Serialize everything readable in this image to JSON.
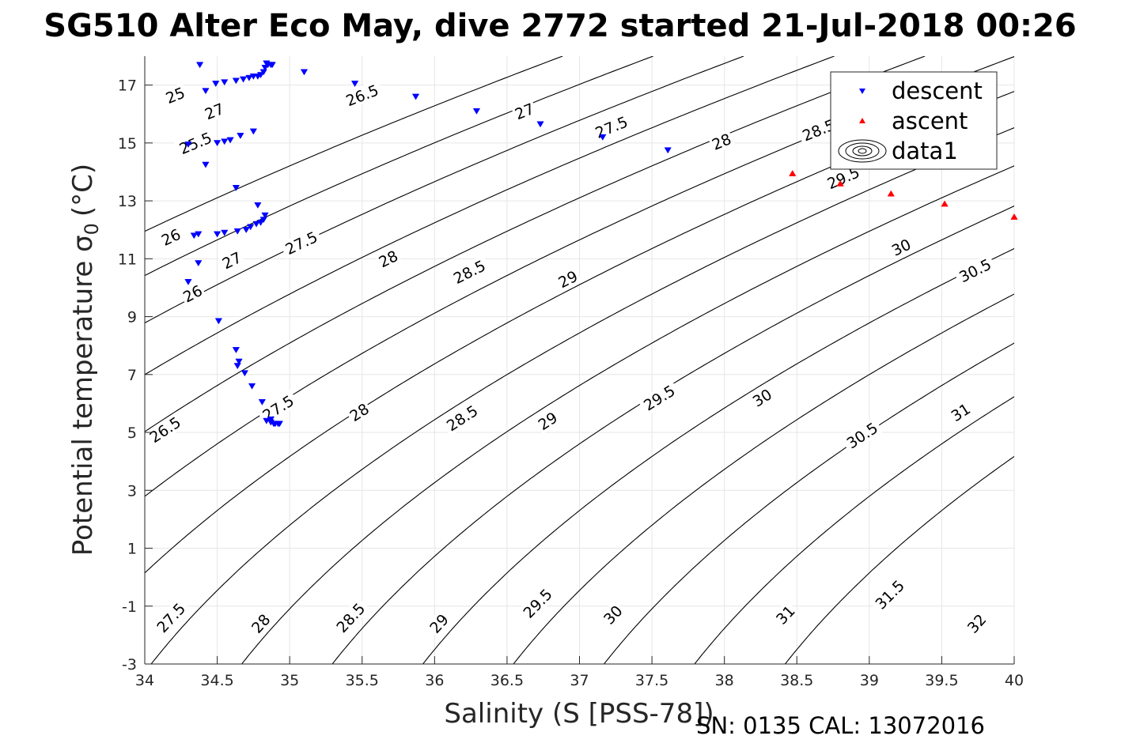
{
  "chart_data": {
    "type": "scatter",
    "title": "SG510 Alter Eco May, dive 2772 started 21-Jul-2018 00:26",
    "xlabel": "Salinity (S [PSS-78])",
    "ylabel": "Potential temperature σ",
    "ylabel_subscript": "0",
    "ylabel_unit": "(°C)",
    "xlim": [
      34,
      40
    ],
    "ylim": [
      -3,
      18
    ],
    "xticks": [
      34,
      34.5,
      35,
      35.5,
      36,
      36.5,
      37,
      37.5,
      38,
      38.5,
      39,
      39.5,
      40
    ],
    "xtick_labels": [
      "34",
      "34.5",
      "35",
      "35.5",
      "36",
      "36.5",
      "37",
      "37.5",
      "38",
      "38.5",
      "39",
      "39.5",
      "40"
    ],
    "yticks": [
      -3,
      -1,
      1,
      3,
      5,
      7,
      9,
      11,
      13,
      15,
      17
    ],
    "ytick_labels": [
      "-3",
      "-1",
      "1",
      "3",
      "5",
      "7",
      "9",
      "11",
      "13",
      "15",
      "17"
    ],
    "grid": true,
    "legend_placement": "top-right",
    "series": [
      {
        "name": "descent",
        "marker": "triangle-down",
        "color": "#0000ff",
        "points": [
          [
            34.38,
            17.7
          ],
          [
            34.42,
            16.8
          ],
          [
            34.49,
            17.05
          ],
          [
            34.55,
            17.1
          ],
          [
            34.63,
            17.15
          ],
          [
            34.68,
            17.2
          ],
          [
            34.72,
            17.25
          ],
          [
            34.75,
            17.3
          ],
          [
            34.78,
            17.3
          ],
          [
            34.8,
            17.35
          ],
          [
            34.82,
            17.45
          ],
          [
            34.83,
            17.6
          ],
          [
            34.84,
            17.75
          ],
          [
            34.85,
            17.7
          ],
          [
            34.87,
            17.7
          ],
          [
            34.88,
            17.7
          ],
          [
            35.1,
            17.45
          ],
          [
            35.45,
            17.05
          ],
          [
            35.87,
            16.6
          ],
          [
            36.29,
            16.1
          ],
          [
            36.73,
            15.65
          ],
          [
            37.16,
            15.2
          ],
          [
            37.61,
            14.75
          ],
          [
            34.3,
            14.95
          ],
          [
            34.42,
            14.25
          ],
          [
            34.5,
            15.0
          ],
          [
            34.55,
            15.05
          ],
          [
            34.59,
            15.1
          ],
          [
            34.66,
            15.25
          ],
          [
            34.75,
            15.4
          ],
          [
            34.63,
            13.45
          ],
          [
            34.78,
            12.85
          ],
          [
            34.83,
            12.5
          ],
          [
            34.82,
            12.35
          ],
          [
            34.8,
            12.25
          ],
          [
            34.77,
            12.2
          ],
          [
            34.73,
            12.1
          ],
          [
            34.7,
            12.0
          ],
          [
            34.64,
            11.95
          ],
          [
            34.55,
            11.9
          ],
          [
            34.5,
            11.85
          ],
          [
            34.37,
            11.85
          ],
          [
            34.34,
            11.8
          ],
          [
            34.37,
            10.85
          ],
          [
            34.3,
            10.2
          ],
          [
            34.51,
            8.85
          ],
          [
            34.63,
            7.85
          ],
          [
            34.65,
            7.45
          ],
          [
            34.64,
            7.3
          ],
          [
            34.69,
            7.05
          ],
          [
            34.74,
            6.6
          ],
          [
            34.81,
            6.05
          ],
          [
            34.84,
            5.4
          ],
          [
            34.87,
            5.35
          ],
          [
            34.89,
            5.3
          ],
          [
            34.9,
            5.3
          ],
          [
            34.92,
            5.3
          ],
          [
            34.93,
            5.3
          ],
          [
            34.87,
            5.45
          ]
        ]
      },
      {
        "name": "ascent",
        "marker": "triangle-up",
        "color": "#ff0000",
        "points": [
          [
            38.47,
            13.95
          ],
          [
            38.8,
            13.6
          ],
          [
            39.15,
            13.25
          ],
          [
            39.52,
            12.9
          ],
          [
            40.0,
            12.45
          ]
        ]
      },
      {
        "name": "data1",
        "marker": "contour",
        "color": "#000000",
        "levels": [
          25,
          25.5,
          26,
          26.5,
          27,
          27.5,
          28,
          28.5,
          29,
          29.5,
          30,
          30.5,
          31,
          31.5,
          32
        ]
      }
    ],
    "annotations": [
      "25",
      "25.5",
      "26",
      "26",
      "26.5",
      "26.5",
      "27",
      "27",
      "27",
      "27.5",
      "27.5",
      "27.5",
      "27.5",
      "28",
      "28",
      "28",
      "28",
      "28.5",
      "28.5",
      "28.5",
      "28.5",
      "29",
      "29",
      "29",
      "29.5",
      "29.5",
      "29.5",
      "30",
      "30",
      "30",
      "30.5",
      "30.5",
      "31",
      "31",
      "31.5",
      "32"
    ]
  },
  "footer": "SN: 0135  CAL: 13072016"
}
